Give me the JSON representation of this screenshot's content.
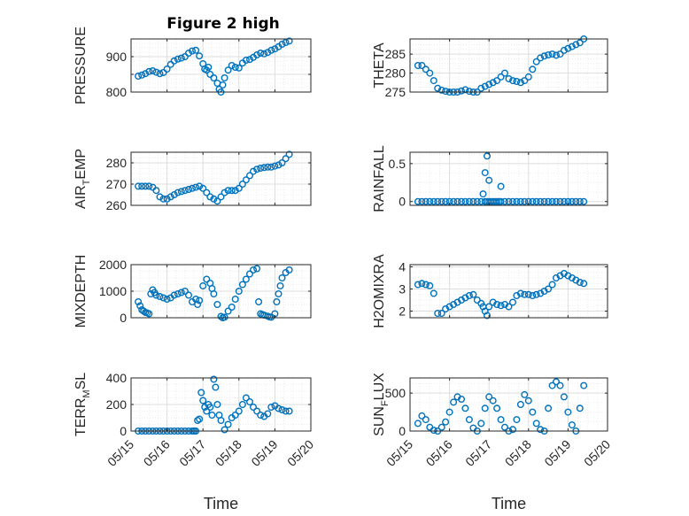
{
  "figure": {
    "title": "Figure 2 high"
  },
  "colors": {
    "series": "#0072BD",
    "axis": "#262626",
    "grid": "#DDDDDD",
    "minorGrid": "#EBEBEB"
  },
  "xaxis": {
    "label": "Time",
    "ticks": [
      0,
      1,
      2,
      3,
      4,
      5
    ],
    "ticklabels": [
      "05/15",
      "05/16",
      "05/17",
      "05/18",
      "05/19",
      "05/20"
    ],
    "xlim": [
      0,
      5
    ]
  },
  "chart_data": [
    {
      "id": "pressure",
      "type": "scatter",
      "marker": "circle-open",
      "ylabel": {
        "main": "PRESSURE",
        "sub": "",
        "tail": ""
      },
      "ylim": [
        800,
        950
      ],
      "yticks": [
        800,
        850,
        900
      ],
      "yticklabels": [
        "800",
        "",
        "900"
      ],
      "grid": true,
      "x": [
        0.2,
        0.3,
        0.4,
        0.5,
        0.6,
        0.7,
        0.8,
        0.9,
        1.0,
        1.1,
        1.2,
        1.3,
        1.4,
        1.5,
        1.6,
        1.7,
        1.8,
        1.9,
        2.0,
        2.05,
        2.1,
        2.15,
        2.2,
        2.3,
        2.4,
        2.45,
        2.5,
        2.55,
        2.6,
        2.7,
        2.8,
        2.9,
        3.0,
        3.1,
        3.2,
        3.3,
        3.4,
        3.5,
        3.6,
        3.7,
        3.8,
        3.9,
        4.0,
        4.1,
        4.2,
        4.3,
        4.4
      ],
      "y": [
        845,
        848,
        852,
        858,
        860,
        856,
        852,
        855,
        865,
        878,
        888,
        893,
        896,
        900,
        910,
        916,
        918,
        902,
        880,
        865,
        862,
        870,
        850,
        840,
        825,
        808,
        800,
        820,
        840,
        862,
        875,
        870,
        868,
        882,
        890,
        892,
        898,
        905,
        910,
        908,
        912,
        918,
        922,
        928,
        935,
        940,
        944
      ]
    },
    {
      "id": "theta",
      "type": "scatter",
      "marker": "circle-open",
      "ylabel": {
        "main": "THETA",
        "sub": "",
        "tail": ""
      },
      "ylim": [
        275,
        289
      ],
      "yticks": [
        275,
        280,
        285
      ],
      "yticklabels": [
        "275",
        "280",
        "285"
      ],
      "grid": true,
      "x": [
        0.2,
        0.3,
        0.4,
        0.5,
        0.6,
        0.7,
        0.8,
        0.9,
        1.0,
        1.1,
        1.2,
        1.3,
        1.4,
        1.5,
        1.6,
        1.7,
        1.8,
        1.9,
        2.0,
        2.1,
        2.2,
        2.3,
        2.4,
        2.5,
        2.6,
        2.7,
        2.8,
        2.9,
        3.0,
        3.1,
        3.2,
        3.3,
        3.4,
        3.5,
        3.6,
        3.7,
        3.8,
        3.9,
        4.0,
        4.1,
        4.2,
        4.3,
        4.4
      ],
      "y": [
        282,
        282,
        281,
        280,
        278,
        276,
        275.5,
        275.2,
        275,
        275,
        275,
        275.3,
        275.6,
        275.2,
        275,
        275,
        276,
        276.5,
        277,
        277.5,
        278,
        279,
        280,
        278.5,
        278,
        277.8,
        277.5,
        278,
        279,
        281,
        283,
        284,
        284.5,
        284.8,
        285,
        284.7,
        285,
        286,
        286.5,
        287,
        287.5,
        288,
        289
      ]
    },
    {
      "id": "airtemp",
      "type": "scatter",
      "marker": "circle-open",
      "ylabel": {
        "main": "AIR",
        "sub": "T",
        "tail": "EMP"
      },
      "ylim": [
        260,
        285
      ],
      "yticks": [
        260,
        270,
        280
      ],
      "yticklabels": [
        "260",
        "270",
        "280"
      ],
      "grid": true,
      "x": [
        0.2,
        0.3,
        0.4,
        0.5,
        0.6,
        0.7,
        0.8,
        0.9,
        1.0,
        1.1,
        1.2,
        1.3,
        1.4,
        1.5,
        1.6,
        1.7,
        1.8,
        1.9,
        2.0,
        2.1,
        2.2,
        2.3,
        2.4,
        2.5,
        2.6,
        2.7,
        2.8,
        2.9,
        3.0,
        3.1,
        3.2,
        3.3,
        3.4,
        3.5,
        3.6,
        3.7,
        3.8,
        3.9,
        4.0,
        4.1,
        4.2,
        4.3,
        4.4
      ],
      "y": [
        269,
        269,
        269,
        269,
        268.5,
        267,
        264,
        263,
        263,
        264,
        265,
        266,
        266.5,
        267,
        267.5,
        268,
        268.5,
        269,
        268,
        266,
        264,
        263,
        262,
        264,
        266,
        267,
        267,
        267,
        268,
        270,
        272,
        274,
        276,
        277,
        277.5,
        277.8,
        278,
        278,
        278.5,
        279,
        280,
        282,
        284
      ]
    },
    {
      "id": "rainfall",
      "type": "scatter",
      "marker": "circle-open",
      "ylabel": {
        "main": "RAINFALL",
        "sub": "",
        "tail": ""
      },
      "ylim": [
        -0.05,
        0.65
      ],
      "yticks": [
        0,
        0.5
      ],
      "yticklabels": [
        "0",
        "0.5"
      ],
      "grid": true,
      "x": [
        0.2,
        0.3,
        0.4,
        0.5,
        0.6,
        0.7,
        0.8,
        0.9,
        1.0,
        1.1,
        1.2,
        1.3,
        1.4,
        1.5,
        1.6,
        1.7,
        1.8,
        1.9,
        1.95,
        2.0,
        2.05,
        2.1,
        2.15,
        2.2,
        2.25,
        2.3,
        2.4,
        2.5,
        2.6,
        2.7,
        2.8,
        2.9,
        3.0,
        3.1,
        3.2,
        3.3,
        3.4,
        3.5,
        3.6,
        3.7,
        3.8,
        3.9,
        4.0,
        4.1,
        4.2,
        4.3,
        4.4,
        1.85,
        1.9,
        1.95,
        2.0,
        2.3
      ],
      "y": [
        0,
        0,
        0,
        0,
        0,
        0,
        0,
        0,
        0,
        0,
        0,
        0,
        0,
        0,
        0,
        0,
        0,
        0,
        0,
        0,
        0,
        0,
        0,
        0,
        0,
        0,
        0,
        0,
        0,
        0,
        0,
        0,
        0,
        0,
        0,
        0,
        0,
        0,
        0,
        0,
        0,
        0,
        0,
        0,
        0,
        0,
        0,
        0.1,
        0.38,
        0.6,
        0.28,
        0.2
      ]
    },
    {
      "id": "mixdepth",
      "type": "scatter",
      "marker": "circle-open",
      "ylabel": {
        "main": "MIXDEPTH",
        "sub": "",
        "tail": ""
      },
      "ylim": [
        0,
        2000
      ],
      "yticks": [
        0,
        1000,
        2000
      ],
      "yticklabels": [
        "0",
        "1000",
        "2000"
      ],
      "grid": true,
      "x": [
        0.2,
        0.25,
        0.3,
        0.35,
        0.4,
        0.45,
        0.5,
        0.55,
        0.6,
        0.65,
        0.7,
        0.8,
        0.9,
        1.0,
        1.1,
        1.2,
        1.3,
        1.4,
        1.5,
        1.6,
        1.7,
        1.8,
        1.85,
        1.9,
        2.0,
        2.1,
        2.2,
        2.25,
        2.3,
        2.4,
        2.5,
        2.55,
        2.6,
        2.7,
        2.8,
        2.9,
        3.0,
        3.1,
        3.2,
        3.3,
        3.4,
        3.5,
        3.55,
        3.6,
        3.65,
        3.7,
        3.8,
        3.85,
        3.9,
        4.0,
        4.05,
        4.1,
        4.15,
        4.2,
        4.3,
        4.4
      ],
      "y": [
        600,
        450,
        300,
        250,
        200,
        180,
        150,
        900,
        1050,
        950,
        850,
        800,
        750,
        700,
        750,
        850,
        900,
        950,
        1000,
        850,
        600,
        700,
        500,
        650,
        1200,
        1450,
        1300,
        1100,
        900,
        500,
        50,
        0,
        20,
        250,
        400,
        700,
        1000,
        1250,
        1450,
        1650,
        1800,
        1850,
        600,
        150,
        120,
        100,
        60,
        30,
        20,
        150,
        600,
        900,
        1200,
        1500,
        1700,
        1800
      ]
    },
    {
      "id": "h2omixra",
      "type": "scatter",
      "marker": "circle-open",
      "ylabel": {
        "main": "H2OMIXRA",
        "sub": "",
        "tail": ""
      },
      "ylim": [
        1.7,
        4.1
      ],
      "yticks": [
        2,
        3,
        4
      ],
      "yticklabels": [
        "2",
        "3",
        "4"
      ],
      "grid": true,
      "x": [
        0.2,
        0.3,
        0.4,
        0.5,
        0.6,
        0.7,
        0.8,
        0.9,
        1.0,
        1.1,
        1.2,
        1.3,
        1.4,
        1.5,
        1.6,
        1.7,
        1.8,
        1.85,
        1.9,
        1.95,
        2.0,
        2.1,
        2.2,
        2.3,
        2.4,
        2.5,
        2.6,
        2.7,
        2.8,
        2.9,
        3.0,
        3.1,
        3.2,
        3.3,
        3.4,
        3.5,
        3.6,
        3.7,
        3.8,
        3.9,
        4.0,
        4.1,
        4.2,
        4.3,
        4.4
      ],
      "y": [
        3.2,
        3.25,
        3.2,
        3.15,
        2.8,
        1.9,
        1.9,
        2.1,
        2.2,
        2.3,
        2.4,
        2.5,
        2.6,
        2.7,
        2.75,
        2.5,
        2.35,
        2.2,
        2.0,
        1.8,
        2.2,
        2.4,
        2.3,
        2.25,
        2.3,
        2.2,
        2.4,
        2.7,
        2.8,
        2.75,
        2.75,
        2.7,
        2.75,
        2.8,
        2.9,
        3.0,
        3.2,
        3.5,
        3.6,
        3.7,
        3.6,
        3.5,
        3.4,
        3.3,
        3.25
      ]
    },
    {
      "id": "terrmsl",
      "type": "scatter",
      "marker": "circle-open",
      "ylabel": {
        "main": "TERR",
        "sub": "M",
        "tail": "SL"
      },
      "ylim": [
        0,
        400
      ],
      "yticks": [
        0,
        200,
        400
      ],
      "yticklabels": [
        "0",
        "200",
        "400"
      ],
      "grid": true,
      "x": [
        0.2,
        0.3,
        0.4,
        0.5,
        0.6,
        0.7,
        0.8,
        0.9,
        1.0,
        1.1,
        1.2,
        1.3,
        1.4,
        1.5,
        1.6,
        1.7,
        1.75,
        1.8,
        1.85,
        1.9,
        1.95,
        2.0,
        2.05,
        2.1,
        2.15,
        2.2,
        2.25,
        2.3,
        2.35,
        2.4,
        2.45,
        2.5,
        2.6,
        2.7,
        2.8,
        2.9,
        3.0,
        3.1,
        3.2,
        3.3,
        3.4,
        3.5,
        3.6,
        3.7,
        3.8,
        3.9,
        4.0,
        4.1,
        4.2,
        4.3,
        4.4
      ],
      "y": [
        0,
        0,
        0,
        0,
        0,
        0,
        0,
        0,
        0,
        0,
        0,
        0,
        0,
        0,
        0,
        0,
        0,
        0,
        80,
        90,
        290,
        230,
        180,
        150,
        200,
        180,
        120,
        390,
        330,
        200,
        120,
        80,
        10,
        50,
        100,
        120,
        150,
        200,
        250,
        220,
        180,
        150,
        120,
        110,
        130,
        180,
        190,
        170,
        160,
        150,
        150
      ]
    },
    {
      "id": "sunflux",
      "type": "scatter",
      "marker": "circle-open",
      "ylabel": {
        "main": "SUN",
        "sub": "F",
        "tail": "LUX"
      },
      "ylim": [
        0,
        700
      ],
      "yticks": [
        0,
        500
      ],
      "yticklabels": [
        "0",
        "500"
      ],
      "grid": true,
      "x": [
        0.2,
        0.3,
        0.4,
        0.5,
        0.6,
        0.7,
        0.8,
        0.9,
        1.0,
        1.1,
        1.2,
        1.3,
        1.4,
        1.5,
        1.6,
        1.7,
        1.8,
        1.9,
        2.0,
        2.1,
        2.2,
        2.3,
        2.4,
        2.5,
        2.6,
        2.7,
        2.8,
        2.9,
        3.0,
        3.1,
        3.2,
        3.3,
        3.4,
        3.5,
        3.6,
        3.7,
        3.8,
        3.9,
        4.0,
        4.1,
        4.2,
        4.3,
        4.4
      ],
      "y": [
        100,
        200,
        150,
        50,
        10,
        0,
        50,
        120,
        250,
        380,
        450,
        420,
        300,
        150,
        40,
        0,
        100,
        300,
        450,
        400,
        300,
        150,
        50,
        0,
        20,
        150,
        350,
        480,
        400,
        250,
        100,
        20,
        0,
        300,
        600,
        650,
        600,
        450,
        250,
        80,
        0,
        300,
        600
      ]
    }
  ]
}
